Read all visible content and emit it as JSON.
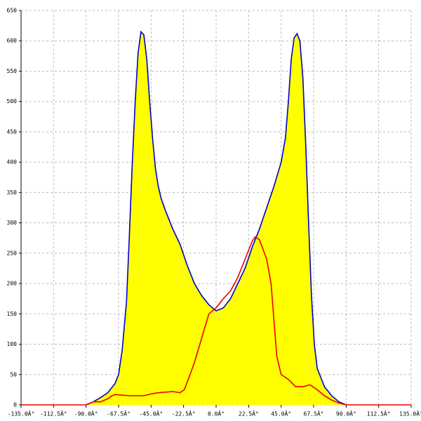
{
  "chart_data": {
    "type": "area",
    "xlim": [
      -135,
      135
    ],
    "ylim": [
      0,
      650
    ],
    "xticks": [
      {
        "value": -135,
        "label": "-135.0Â°"
      },
      {
        "value": -112.5,
        "label": "-112.5Â°"
      },
      {
        "value": -90,
        "label": "-90.0Â°"
      },
      {
        "value": -67.5,
        "label": "-67.5Â°"
      },
      {
        "value": -45,
        "label": "-45.0Â°"
      },
      {
        "value": -22.5,
        "label": "-22.5Â°"
      },
      {
        "value": 0,
        "label": "0.0Â°"
      },
      {
        "value": 22.5,
        "label": "22.5Â°"
      },
      {
        "value": 45,
        "label": "45.0Â°"
      },
      {
        "value": 67.5,
        "label": "67.5Â°"
      },
      {
        "value": 90,
        "label": "90.0Â°"
      },
      {
        "value": 112.5,
        "label": "112.5Â°"
      },
      {
        "value": 135,
        "label": "135.0Â°"
      }
    ],
    "yticks": [
      0,
      50,
      100,
      150,
      200,
      250,
      300,
      350,
      400,
      450,
      500,
      550,
      600,
      650
    ],
    "grid": true,
    "series": [
      {
        "color": "#0000cc",
        "fill": "#ffff00",
        "x": [
          -90,
          -85,
          -80,
          -75,
          -70,
          -67.5,
          -65,
          -62,
          -60,
          -58,
          -56,
          -54,
          -52,
          -50,
          -48,
          -46,
          -44,
          -42,
          -40,
          -38,
          -35,
          -30,
          -25,
          -20,
          -15,
          -10,
          -5,
          0,
          5,
          10,
          15,
          20,
          25,
          30,
          35,
          40,
          45,
          48,
          50,
          52,
          54,
          56,
          58,
          60,
          62,
          64,
          66,
          68,
          70,
          75,
          80,
          85,
          90
        ],
        "values": [
          0,
          5,
          12,
          20,
          35,
          50,
          90,
          170,
          280,
          400,
          500,
          580,
          615,
          610,
          570,
          500,
          440,
          390,
          360,
          340,
          320,
          290,
          265,
          230,
          200,
          180,
          165,
          155,
          160,
          175,
          200,
          225,
          260,
          290,
          325,
          360,
          400,
          440,
          500,
          570,
          605,
          612,
          600,
          540,
          430,
          300,
          180,
          100,
          60,
          30,
          15,
          5,
          0
        ]
      },
      {
        "color": "#ee0000",
        "x": [
          -135,
          -90,
          -85,
          -80,
          -75,
          -72,
          -70,
          -60,
          -50,
          -45,
          -40,
          -30,
          -25,
          -22,
          -18,
          -15,
          -10,
          -5,
          0,
          5,
          10,
          15,
          20,
          25,
          27,
          30,
          35,
          38,
          40,
          42,
          45,
          50,
          55,
          60,
          65,
          70,
          75,
          80,
          85,
          90,
          135
        ],
        "values": [
          0,
          0,
          5,
          5,
          10,
          15,
          17,
          15,
          15,
          18,
          20,
          22,
          20,
          25,
          50,
          70,
          110,
          150,
          160,
          175,
          188,
          210,
          240,
          270,
          277,
          272,
          240,
          200,
          140,
          80,
          50,
          42,
          30,
          30,
          33,
          25,
          15,
          8,
          3,
          0,
          0
        ]
      }
    ]
  }
}
